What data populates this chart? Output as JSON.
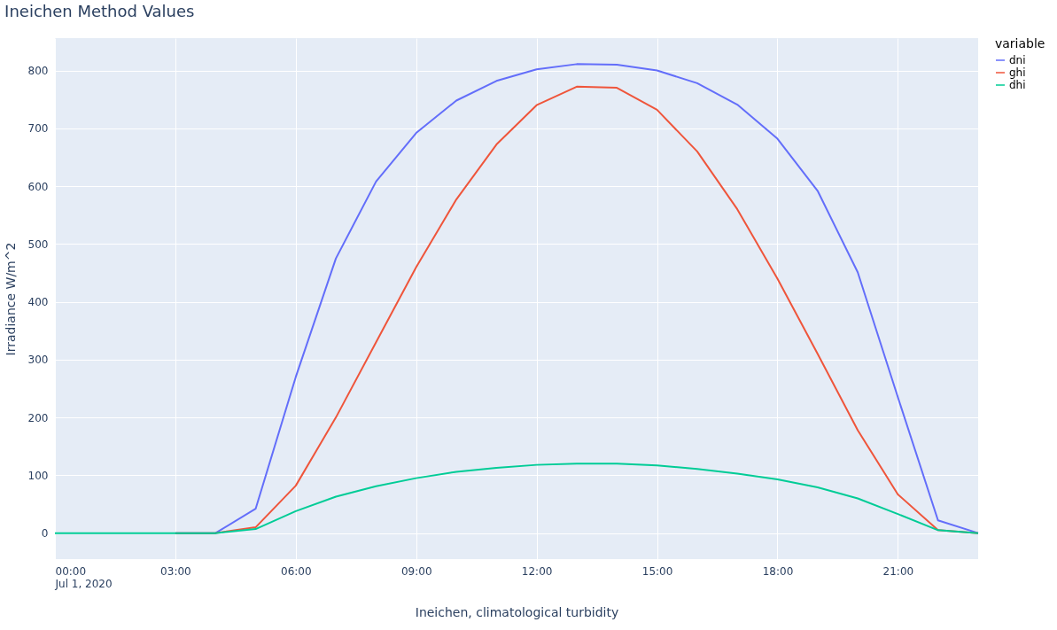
{
  "chart_data": {
    "type": "line",
    "title": "Ineichen Method Values",
    "xlabel": "Ineichen, climatological turbidity",
    "ylabel": "Irradiance W/m^2",
    "legend_title": "variable",
    "x": [
      "2020-07-01T00:00",
      "2020-07-01T01:00",
      "2020-07-01T02:00",
      "2020-07-01T03:00",
      "2020-07-01T04:00",
      "2020-07-01T05:00",
      "2020-07-01T06:00",
      "2020-07-01T07:00",
      "2020-07-01T08:00",
      "2020-07-01T09:00",
      "2020-07-01T10:00",
      "2020-07-01T11:00",
      "2020-07-01T12:00",
      "2020-07-01T13:00",
      "2020-07-01T14:00",
      "2020-07-01T15:00",
      "2020-07-01T16:00",
      "2020-07-01T17:00",
      "2020-07-01T18:00",
      "2020-07-01T19:00",
      "2020-07-01T20:00",
      "2020-07-01T21:00",
      "2020-07-01T22:00",
      "2020-07-01T23:00"
    ],
    "series": [
      {
        "name": "dni",
        "color": "#636efa",
        "values": [
          null,
          null,
          null,
          0,
          0,
          42,
          270,
          475,
          608,
          692,
          748,
          782,
          802,
          811,
          810,
          800,
          778,
          741,
          682,
          592,
          451,
          235,
          22,
          0
        ]
      },
      {
        "name": "ghi",
        "color": "#ef553b",
        "values": [
          null,
          null,
          null,
          0,
          0,
          10,
          82,
          200,
          330,
          460,
          577,
          672,
          740,
          772,
          770,
          732,
          660,
          560,
          440,
          310,
          178,
          67,
          5,
          0
        ]
      },
      {
        "name": "dhi",
        "color": "#00cc96",
        "values": [
          0,
          0,
          0,
          0,
          0,
          7,
          38,
          63,
          81,
          95,
          106,
          113,
          118,
          120,
          120,
          117,
          111,
          103,
          93,
          79,
          60,
          33,
          5,
          0
        ]
      }
    ],
    "xlim": [
      "2020-07-01T00:00",
      "2020-07-01T23:00"
    ],
    "xticks": [
      {
        "value": "2020-07-01T00:00",
        "label": "00:00\nJul 1, 2020"
      },
      {
        "value": "2020-07-01T03:00",
        "label": "03:00"
      },
      {
        "value": "2020-07-01T06:00",
        "label": "06:00"
      },
      {
        "value": "2020-07-01T09:00",
        "label": "09:00"
      },
      {
        "value": "2020-07-01T12:00",
        "label": "12:00"
      },
      {
        "value": "2020-07-01T15:00",
        "label": "15:00"
      },
      {
        "value": "2020-07-01T18:00",
        "label": "18:00"
      },
      {
        "value": "2020-07-01T21:00",
        "label": "21:00"
      }
    ],
    "ylim": [
      -45,
      856
    ],
    "yticks": [
      0,
      100,
      200,
      300,
      400,
      500,
      600,
      700,
      800
    ],
    "grid": true,
    "legend": "top right",
    "marker": "none",
    "line_style": "solid"
  }
}
